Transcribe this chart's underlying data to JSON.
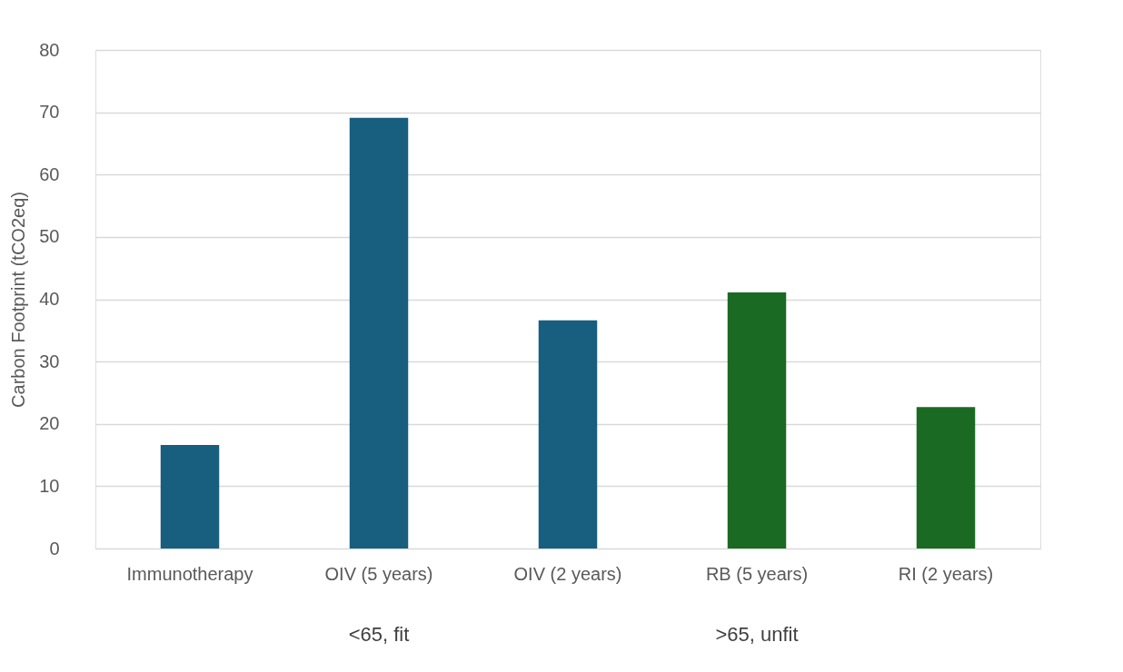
{
  "chart_data": {
    "type": "bar",
    "ylabel": "Carbon Footprint (tCO2eq)",
    "categories": [
      "Immunotherapy",
      "OIV (5 years)",
      "OIV (2 years)",
      "RB (5 years)",
      "RI (2 years)"
    ],
    "values": [
      16.6,
      69.1,
      36.6,
      41.1,
      22.7
    ],
    "colors": [
      "#175e7f",
      "#175e7f",
      "#175e7f",
      "#1b6a23",
      "#1b6a23"
    ],
    "ylim": [
      0,
      80
    ],
    "yticks": [
      0,
      10,
      20,
      30,
      40,
      50,
      60,
      70,
      80
    ],
    "grid": "y",
    "annotations": [
      "<65, fit",
      ">65, unfit"
    ]
  }
}
